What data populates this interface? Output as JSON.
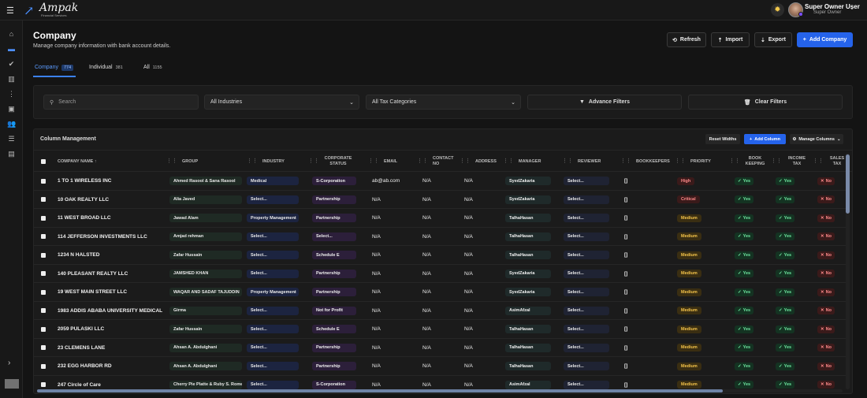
{
  "header": {
    "logo_text": "Ampak",
    "logo_sub": "Financial Services",
    "user_name": "Super Owner User",
    "user_role": "Super Owner"
  },
  "sidebar": {
    "icons": [
      "home-icon",
      "building-icon",
      "check-circle-icon",
      "chart-icon",
      "more-icon",
      "calendar-icon",
      "users-icon",
      "database-icon",
      "clipboard-icon"
    ],
    "active_index": 1
  },
  "page": {
    "title": "Company",
    "subtitle": "Manage company information with bank account details."
  },
  "actions": {
    "refresh": "Refresh",
    "import": "Import",
    "export": "Export",
    "add_company": "Add Company"
  },
  "tabs": [
    {
      "label": "Company",
      "count": "774"
    },
    {
      "label": "Individual",
      "count": "381"
    },
    {
      "label": "All",
      "count": "1155"
    }
  ],
  "filters": {
    "search_placeholder": "Search",
    "industries": "All Industries",
    "tax_categories": "All Tax Categories",
    "advance_filters": "Advance Filters",
    "clear_filters": "Clear Filters"
  },
  "table": {
    "title": "Column Management",
    "reset_widths": "Reset Widths",
    "add_column": "Add Column",
    "manage_columns": "Manage Columns",
    "columns": {
      "company_name": "Company Name ↑",
      "group": "Group",
      "industry": "Industry",
      "corporate_status": "Corporate Status",
      "email": "Email",
      "contact_no": "Contact No",
      "address": "Address",
      "manager": "Manager",
      "reviewer": "Reviewer",
      "bookkeepers": "Bookkeepers",
      "priority": "Priority",
      "book_keeping": "Book Keeping",
      "income_tax": "Income Tax",
      "sales_tax": "Sales Tax"
    },
    "rows": [
      {
        "company": "1 TO 1 WIRELESS INC",
        "group": "Ahmed Rasool & Sana Rasool",
        "industry": "Medical",
        "corp": "S-Corporation",
        "email": "ab@ab.com",
        "contact": "N/A",
        "address": "N/A",
        "manager": "SyedZakaria",
        "reviewer": "Select...",
        "bookkeepers": "[]",
        "priority": "High",
        "book": "Yes",
        "income": "Yes",
        "sales": "No"
      },
      {
        "company": "10 OAK REALTY LLC",
        "group": "Alia Javed",
        "industry": "Select...",
        "corp": "Partnership",
        "email": "N/A",
        "contact": "N/A",
        "address": "N/A",
        "manager": "SyedZakaria",
        "reviewer": "Select...",
        "bookkeepers": "[]",
        "priority": "Critical",
        "book": "Yes",
        "income": "Yes",
        "sales": "No"
      },
      {
        "company": "11 WEST BROAD LLC",
        "group": "Jawad Alam",
        "industry": "Property Management",
        "corp": "Partnership",
        "email": "N/A",
        "contact": "N/A",
        "address": "N/A",
        "manager": "TalhaHasan",
        "reviewer": "Select...",
        "bookkeepers": "[]",
        "priority": "Medium",
        "book": "Yes",
        "income": "Yes",
        "sales": "No"
      },
      {
        "company": "114 JEFFERSON INVESTMENTS LLC",
        "group": "Amjad rehman",
        "industry": "Select...",
        "corp": "Select...",
        "email": "N/A",
        "contact": "N/A",
        "address": "N/A",
        "manager": "TalhaHasan",
        "reviewer": "Select...",
        "bookkeepers": "[]",
        "priority": "Medium",
        "book": "Yes",
        "income": "Yes",
        "sales": "No"
      },
      {
        "company": "1234 N HALSTED",
        "group": "Zafar Hussain",
        "industry": "Select...",
        "corp": "Schedule E",
        "email": "N/A",
        "contact": "N/A",
        "address": "N/A",
        "manager": "TalhaHasan",
        "reviewer": "Select...",
        "bookkeepers": "[]",
        "priority": "Medium",
        "book": "Yes",
        "income": "Yes",
        "sales": "No"
      },
      {
        "company": "140 PLEASANT REALTY LLC",
        "group": "JAMSHED KHAN",
        "industry": "Select...",
        "corp": "Partnership",
        "email": "N/A",
        "contact": "N/A",
        "address": "N/A",
        "manager": "SyedZakaria",
        "reviewer": "Select...",
        "bookkeepers": "[]",
        "priority": "Medium",
        "book": "Yes",
        "income": "Yes",
        "sales": "No"
      },
      {
        "company": "19 WEST MAIN STREET LLC",
        "group": "WAQAR AND SADAF TAJUDDIN",
        "industry": "Property Management",
        "corp": "Partnership",
        "email": "N/A",
        "contact": "N/A",
        "address": "N/A",
        "manager": "SyedZakaria",
        "reviewer": "Select...",
        "bookkeepers": "[]",
        "priority": "Medium",
        "book": "Yes",
        "income": "Yes",
        "sales": "No"
      },
      {
        "company": "1983 ADDIS ABABA UNIVERSITY MEDICAL",
        "group": "Girma",
        "industry": "Select...",
        "corp": "Not for Profit",
        "email": "N/A",
        "contact": "N/A",
        "address": "N/A",
        "manager": "AsimAfzal",
        "reviewer": "Select...",
        "bookkeepers": "[]",
        "priority": "Medium",
        "book": "Yes",
        "income": "Yes",
        "sales": "No"
      },
      {
        "company": "2059 PULASKI LLC",
        "group": "Zafar Hussain",
        "industry": "Select...",
        "corp": "Schedule E",
        "email": "N/A",
        "contact": "N/A",
        "address": "N/A",
        "manager": "TalhaHasan",
        "reviewer": "Select...",
        "bookkeepers": "[]",
        "priority": "Medium",
        "book": "Yes",
        "income": "Yes",
        "sales": "No"
      },
      {
        "company": "23 CLEMENS LANE",
        "group": "Ahsan A. Abdulghani",
        "industry": "Select...",
        "corp": "Partnership",
        "email": "N/A",
        "contact": "N/A",
        "address": "N/A",
        "manager": "TalhaHasan",
        "reviewer": "Select...",
        "bookkeepers": "[]",
        "priority": "Medium",
        "book": "Yes",
        "income": "Yes",
        "sales": "No"
      },
      {
        "company": "232 EGG HARBOR RD",
        "group": "Ahsan A. Abdulghani",
        "industry": "Select...",
        "corp": "Partnership",
        "email": "N/A",
        "contact": "N/A",
        "address": "N/A",
        "manager": "TalhaHasan",
        "reviewer": "Select...",
        "bookkeepers": "[]",
        "priority": "Medium",
        "book": "Yes",
        "income": "Yes",
        "sales": "No"
      },
      {
        "company": "247 Circle of Care",
        "group": "Cherry Pie Platte & Ruby S. Romero",
        "industry": "Select...",
        "corp": "S-Corporation",
        "email": "N/A",
        "contact": "N/A",
        "address": "N/A",
        "manager": "AsimAfzal",
        "reviewer": "Select...",
        "bookkeepers": "[]",
        "priority": "Medium",
        "book": "Yes",
        "income": "Yes",
        "sales": "No"
      }
    ]
  }
}
